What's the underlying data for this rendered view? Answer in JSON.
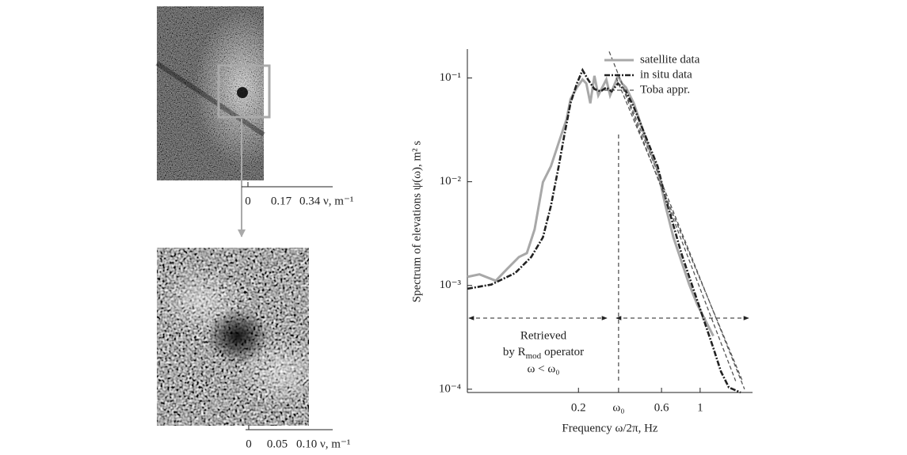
{
  "panels": [
    {
      "scale": [
        "0",
        "0.17",
        "0.34 ν, m⁻¹"
      ]
    },
    {
      "scale": [
        "0",
        "0.05",
        "0.10 ν, m⁻¹"
      ]
    }
  ],
  "chart_data": {
    "type": "line",
    "ylabel": "Spectrum of elevations ψ(ω), m² s",
    "xlabel": "Frequency ω/2π, Hz",
    "xscale": "log",
    "yscale": "log",
    "xlim": [
      0.046,
      2.0
    ],
    "ylim": [
      9.3e-05,
      0.19
    ],
    "xticks": [
      0.2,
      {
        "value": 0.34,
        "label": "ω₀"
      },
      0.6,
      1
    ],
    "yticks": [
      {
        "value": 0.0001,
        "label": "10⁻⁴"
      },
      {
        "value": 0.001,
        "label": "10⁻³"
      },
      {
        "value": 0.01,
        "label": "10⁻²"
      },
      {
        "value": 0.1,
        "label": "10⁻¹"
      }
    ],
    "legend": "upper right",
    "annotation": [
      "Retrieved",
      "by R",
      "mod",
      "operator",
      "ω < ω₀"
    ],
    "series": [
      {
        "name": "satellite data",
        "color": "#a8a8a8",
        "linestyle": "solid",
        "x": [
          0.046,
          0.054,
          0.067,
          0.078,
          0.091,
          0.101,
          0.112,
          0.125,
          0.139,
          0.154,
          0.171,
          0.18,
          0.196,
          0.211,
          0.222,
          0.234,
          0.247,
          0.26,
          0.274,
          0.289,
          0.304,
          0.32,
          0.337,
          0.356,
          0.375,
          0.416,
          0.462,
          0.513,
          0.57,
          0.632,
          0.702,
          0.78,
          0.866,
          0.962,
          1.07,
          1.19
        ],
        "values": [
          0.00121,
          0.00128,
          0.00111,
          0.00145,
          0.00188,
          0.00205,
          0.00347,
          0.0099,
          0.0141,
          0.0238,
          0.0403,
          0.0624,
          0.0811,
          0.0966,
          0.0885,
          0.0571,
          0.105,
          0.068,
          0.0811,
          0.0966,
          0.068,
          0.0839,
          0.105,
          0.0885,
          0.0811,
          0.0571,
          0.0338,
          0.02,
          0.0129,
          0.00586,
          0.00291,
          0.00172,
          0.00102,
          0.000657,
          0.000462,
          0.000326
        ]
      },
      {
        "name": "in situ data",
        "color": "#222222",
        "linestyle": "dashdot",
        "x": [
          0.046,
          0.0632,
          0.0866,
          0.107,
          0.125,
          0.139,
          0.154,
          0.166,
          0.18,
          0.196,
          0.211,
          0.227,
          0.247,
          0.268,
          0.289,
          0.31,
          0.337,
          0.375,
          0.416,
          0.462,
          0.513,
          0.57,
          0.632,
          0.702,
          0.78,
          0.866,
          0.962,
          1.07,
          1.19,
          1.316,
          1.462,
          1.71
        ],
        "values": [
          0.00093,
          0.00102,
          0.00132,
          0.00188,
          0.00291,
          0.00586,
          0.0141,
          0.0283,
          0.0571,
          0.0885,
          0.119,
          0.0966,
          0.0783,
          0.0743,
          0.0811,
          0.0743,
          0.0885,
          0.0743,
          0.0524,
          0.0338,
          0.0218,
          0.0141,
          0.00698,
          0.00379,
          0.00205,
          0.00121,
          0.000718,
          0.000424,
          0.00025,
          0.000148,
          0.000104,
          9.3e-05
        ]
      },
      {
        "name": "Toba appr.",
        "color": "#555555",
        "linestyle": "dashed",
        "x": [
          0.3,
          1.8,
          null,
          0.33,
          1.75,
          null,
          0.36,
          1.6
        ],
        "values": [
          0.18,
          0.0001,
          null,
          0.1,
          0.00012,
          null,
          0.08,
          0.00012
        ]
      }
    ]
  }
}
